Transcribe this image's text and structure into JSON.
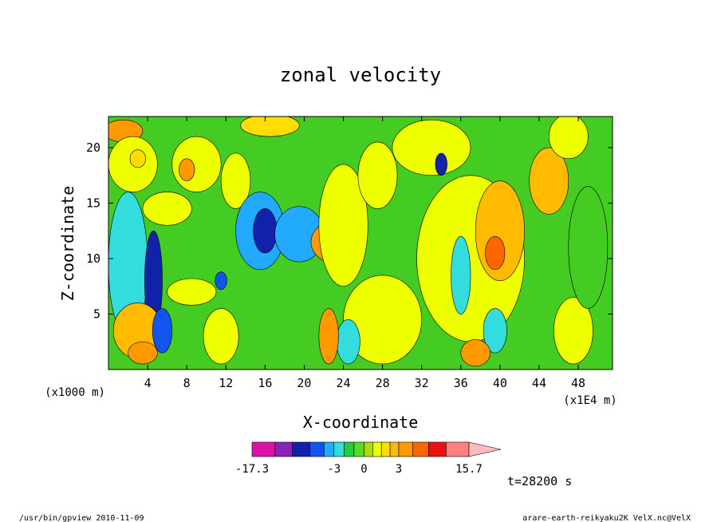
{
  "chart_data": {
    "type": "heatmap",
    "title": "zonal velocity",
    "xlabel": "X-coordinate",
    "ylabel": "Z-coordinate",
    "x_unit": "(x1E4 m)",
    "y_unit": "(x1000 m)",
    "xlim": [
      0,
      51.5
    ],
    "ylim": [
      0,
      22.8
    ],
    "x_ticks": [
      4,
      8,
      12,
      16,
      20,
      24,
      28,
      32,
      36,
      40,
      44,
      48
    ],
    "y_ticks": [
      5,
      10,
      15,
      20
    ],
    "colorbar": {
      "min_label": "-17.3",
      "max_label": "15.7",
      "tick_labels": [
        "-17.3",
        "-3",
        "0",
        "3",
        "15.7"
      ],
      "tick_values": [
        -17.3,
        -3,
        0,
        3,
        15.7
      ],
      "bins": [
        {
          "from": -17.3,
          "to": -12,
          "color": "#dd11aa"
        },
        {
          "from": -12,
          "to": -9,
          "color": "#8822bb"
        },
        {
          "from": -9,
          "to": -6,
          "color": "#1122aa"
        },
        {
          "from": -6,
          "to": -4,
          "color": "#1155ee"
        },
        {
          "from": -4,
          "to": -3,
          "color": "#22aaff"
        },
        {
          "from": -3,
          "to": -2,
          "color": "#33dddd"
        },
        {
          "from": -2,
          "to": -1,
          "color": "#22cc44"
        },
        {
          "from": -1,
          "to": 0,
          "color": "#55dd22"
        },
        {
          "from": 0,
          "to": 0.75,
          "color": "#aadd00"
        },
        {
          "from": 0.75,
          "to": 1.5,
          "color": "#eeff00"
        },
        {
          "from": 1.5,
          "to": 2.25,
          "color": "#ffdd00"
        },
        {
          "from": 2.25,
          "to": 3,
          "color": "#ffbb00"
        },
        {
          "from": 3,
          "to": 5,
          "color": "#ff9900"
        },
        {
          "from": 5,
          "to": 7.5,
          "color": "#ff6600"
        },
        {
          "from": 7.5,
          "to": 10.5,
          "color": "#ee1111"
        },
        {
          "from": 10.5,
          "to": 15.7,
          "color": "#ff8080"
        },
        {
          "from": 15.7,
          "to": 20,
          "color": "#ffbbbb"
        }
      ]
    },
    "background_color": "#44cc22",
    "regions": [
      {
        "x": 1.5,
        "z": 21.5,
        "rx": 2.0,
        "rz": 1.0,
        "color": "#ff9900"
      },
      {
        "x": 2.5,
        "z": 18.5,
        "rx": 2.5,
        "rz": 2.5,
        "color": "#eeff00"
      },
      {
        "x": 3.0,
        "z": 19.0,
        "rx": 0.8,
        "rz": 0.8,
        "color": "#ffdd00"
      },
      {
        "x": 2.0,
        "z": 9.5,
        "rx": 2.0,
        "rz": 6.5,
        "color": "#33dddd"
      },
      {
        "x": 4.6,
        "z": 8.0,
        "rx": 0.9,
        "rz": 4.5,
        "color": "#1122aa"
      },
      {
        "x": 6.0,
        "z": 14.5,
        "rx": 2.5,
        "rz": 1.5,
        "color": "#eeff00"
      },
      {
        "x": 9.0,
        "z": 18.5,
        "rx": 2.5,
        "rz": 2.5,
        "color": "#eeff00"
      },
      {
        "x": 8.0,
        "z": 18.0,
        "rx": 0.8,
        "rz": 1.0,
        "color": "#ff9900"
      },
      {
        "x": 8.5,
        "z": 7.0,
        "rx": 2.5,
        "rz": 1.2,
        "color": "#eeff00"
      },
      {
        "x": 3.0,
        "z": 3.5,
        "rx": 2.5,
        "rz": 2.5,
        "color": "#ffbb00"
      },
      {
        "x": 3.5,
        "z": 1.5,
        "rx": 1.5,
        "rz": 1.0,
        "color": "#ff9900"
      },
      {
        "x": 5.5,
        "z": 3.5,
        "rx": 1.0,
        "rz": 2.0,
        "color": "#1155ee"
      },
      {
        "x": 11.5,
        "z": 3.0,
        "rx": 1.8,
        "rz": 2.5,
        "color": "#eeff00"
      },
      {
        "x": 11.5,
        "z": 8.0,
        "rx": 0.6,
        "rz": 0.8,
        "color": "#1155ee"
      },
      {
        "x": 13.0,
        "z": 17.0,
        "rx": 1.5,
        "rz": 2.5,
        "color": "#eeff00"
      },
      {
        "x": 15.5,
        "z": 12.5,
        "rx": 2.5,
        "rz": 3.5,
        "color": "#22aaff"
      },
      {
        "x": 16.0,
        "z": 12.5,
        "rx": 1.2,
        "rz": 2.0,
        "color": "#1122aa"
      },
      {
        "x": 16.5,
        "z": 22.0,
        "rx": 3.0,
        "rz": 1.0,
        "color": "#ffdd00"
      },
      {
        "x": 19.0,
        "z": 12.0,
        "rx": 1.5,
        "rz": 1.3,
        "color": "#1122aa"
      },
      {
        "x": 19.5,
        "z": 12.2,
        "rx": 2.5,
        "rz": 2.5,
        "color": "#22aaff"
      },
      {
        "x": 23.5,
        "z": 11.5,
        "rx": 2.8,
        "rz": 2.0,
        "color": "#ff9900"
      },
      {
        "x": 23.0,
        "z": 11.2,
        "rx": 1.2,
        "rz": 1.0,
        "color": "#ff6600"
      },
      {
        "x": 24.0,
        "z": 13.0,
        "rx": 2.5,
        "rz": 5.5,
        "color": "#eeff00"
      },
      {
        "x": 27.5,
        "z": 17.5,
        "rx": 2.0,
        "rz": 3.0,
        "color": "#eeff00"
      },
      {
        "x": 28.0,
        "z": 4.5,
        "rx": 4.0,
        "rz": 4.0,
        "color": "#eeff00"
      },
      {
        "x": 24.5,
        "z": 2.5,
        "rx": 1.2,
        "rz": 2.0,
        "color": "#33dddd"
      },
      {
        "x": 22.5,
        "z": 3.0,
        "rx": 1.0,
        "rz": 2.5,
        "color": "#ff9900"
      },
      {
        "x": 33.0,
        "z": 20.0,
        "rx": 4.0,
        "rz": 2.5,
        "color": "#eeff00"
      },
      {
        "x": 34.0,
        "z": 18.5,
        "rx": 0.6,
        "rz": 1.0,
        "color": "#1122aa"
      },
      {
        "x": 37.0,
        "z": 10.0,
        "rx": 5.5,
        "rz": 7.5,
        "color": "#eeff00"
      },
      {
        "x": 40.0,
        "z": 12.5,
        "rx": 2.5,
        "rz": 4.5,
        "color": "#ffbb00"
      },
      {
        "x": 39.5,
        "z": 10.5,
        "rx": 1.0,
        "rz": 1.5,
        "color": "#ff6600"
      },
      {
        "x": 36.0,
        "z": 8.5,
        "rx": 1.0,
        "rz": 3.5,
        "color": "#33dddd"
      },
      {
        "x": 39.5,
        "z": 3.5,
        "rx": 1.2,
        "rz": 2.0,
        "color": "#33dddd"
      },
      {
        "x": 37.5,
        "z": 1.5,
        "rx": 1.5,
        "rz": 1.2,
        "color": "#ff9900"
      },
      {
        "x": 45.0,
        "z": 17.0,
        "rx": 2.0,
        "rz": 3.0,
        "color": "#ffbb00"
      },
      {
        "x": 47.0,
        "z": 21.0,
        "rx": 2.0,
        "rz": 2.0,
        "color": "#eeff00"
      },
      {
        "x": 47.5,
        "z": 3.5,
        "rx": 2.0,
        "rz": 3.0,
        "color": "#eeff00"
      },
      {
        "x": 49.0,
        "z": 11.0,
        "rx": 2.0,
        "rz": 5.5,
        "color": "#44cc22"
      }
    ],
    "annotations": {
      "time_label": "t=28200 s"
    }
  },
  "footer": {
    "program": "/usr/bin/gpview  2010-11-09",
    "source": "arare-earth-reikyaku2K_VelX.nc@VelX"
  }
}
